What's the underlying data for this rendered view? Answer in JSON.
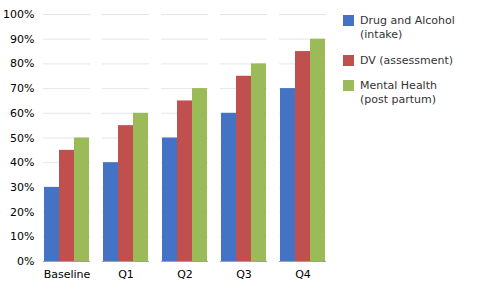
{
  "chart_data": {
    "type": "bar",
    "categories": [
      "Baseline",
      "Q1",
      "Q2",
      "Q3",
      "Q4"
    ],
    "series": [
      {
        "name": "Drug and Alcohol\n(intake)",
        "color": "#4472C4",
        "values": [
          0.3,
          0.4,
          0.5,
          0.6,
          0.7
        ]
      },
      {
        "name": "DV (assessment)",
        "color": "#C0504D",
        "values": [
          0.45,
          0.55,
          0.65,
          0.75,
          0.85
        ]
      },
      {
        "name": "Mental Health\n(post partum)",
        "color": "#9BBB59",
        "values": [
          0.5,
          0.6,
          0.7,
          0.8,
          0.9
        ]
      }
    ],
    "ylim": [
      0.0,
      1.0
    ],
    "yticks": [
      {
        "value": 0.0,
        "label": "0%"
      },
      {
        "value": 0.1,
        "label": "10%"
      },
      {
        "value": 0.2,
        "label": "20%"
      },
      {
        "value": 0.3,
        "label": "30%"
      },
      {
        "value": 0.4,
        "label": "40%"
      },
      {
        "value": 0.5,
        "label": "50%"
      },
      {
        "value": 0.6,
        "label": "60%"
      },
      {
        "value": 0.7,
        "label": "70%"
      },
      {
        "value": 0.8,
        "label": "80%"
      },
      {
        "value": 0.9,
        "label": "90%"
      },
      {
        "value": 1.0,
        "label": "100%"
      }
    ],
    "grid": true,
    "legend": "right"
  }
}
